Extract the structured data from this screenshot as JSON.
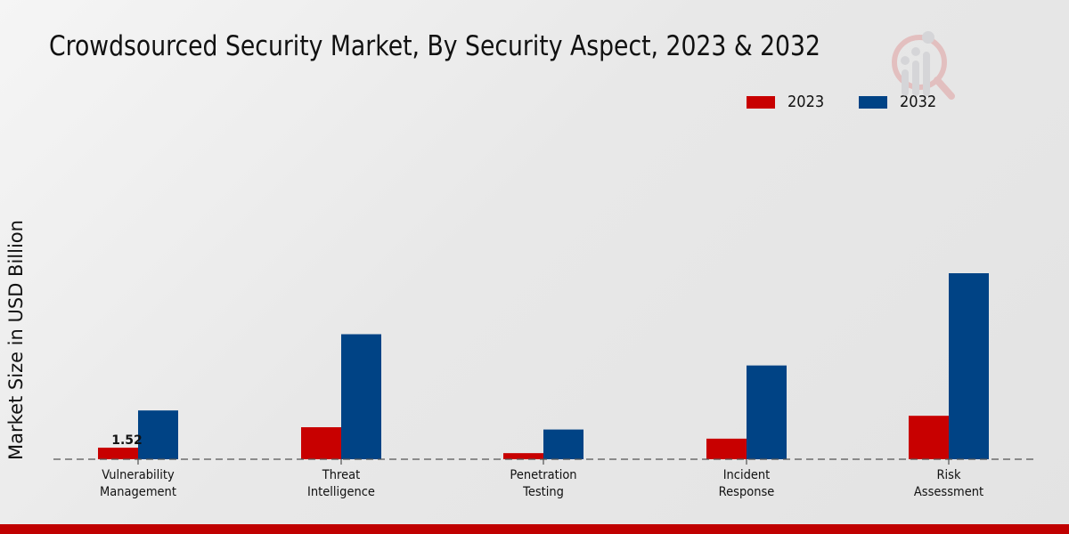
{
  "chart_data": {
    "type": "bar",
    "title": "Crowdsourced Security Market, By Security Aspect, 2023 & 2032",
    "xlabel": "",
    "ylabel": "Market Size in USD Billion",
    "categories": [
      "Vulnerability Management",
      "Threat Intelligence",
      "Penetration Testing",
      "Incident Response",
      "Risk Assessment"
    ],
    "category_lines": [
      [
        "Vulnerability",
        "Management"
      ],
      [
        "Threat",
        "Intelligence"
      ],
      [
        "Penetration",
        "Testing"
      ],
      [
        "Incident",
        "Response"
      ],
      [
        "Risk",
        "Assessment"
      ]
    ],
    "series": [
      {
        "name": "2023",
        "color": "#c80000",
        "values": [
          1.52,
          4.2,
          0.8,
          2.7,
          5.7
        ]
      },
      {
        "name": "2032",
        "color": "#004385",
        "values": [
          6.4,
          16.4,
          3.9,
          12.3,
          24.4
        ]
      }
    ],
    "data_labels": [
      {
        "series": "2023",
        "category": "Vulnerability Management",
        "text": "1.52"
      }
    ],
    "ylim": [
      0,
      30
    ],
    "grid": false,
    "legend_position": "top-right"
  },
  "accent_color": "#c00000"
}
